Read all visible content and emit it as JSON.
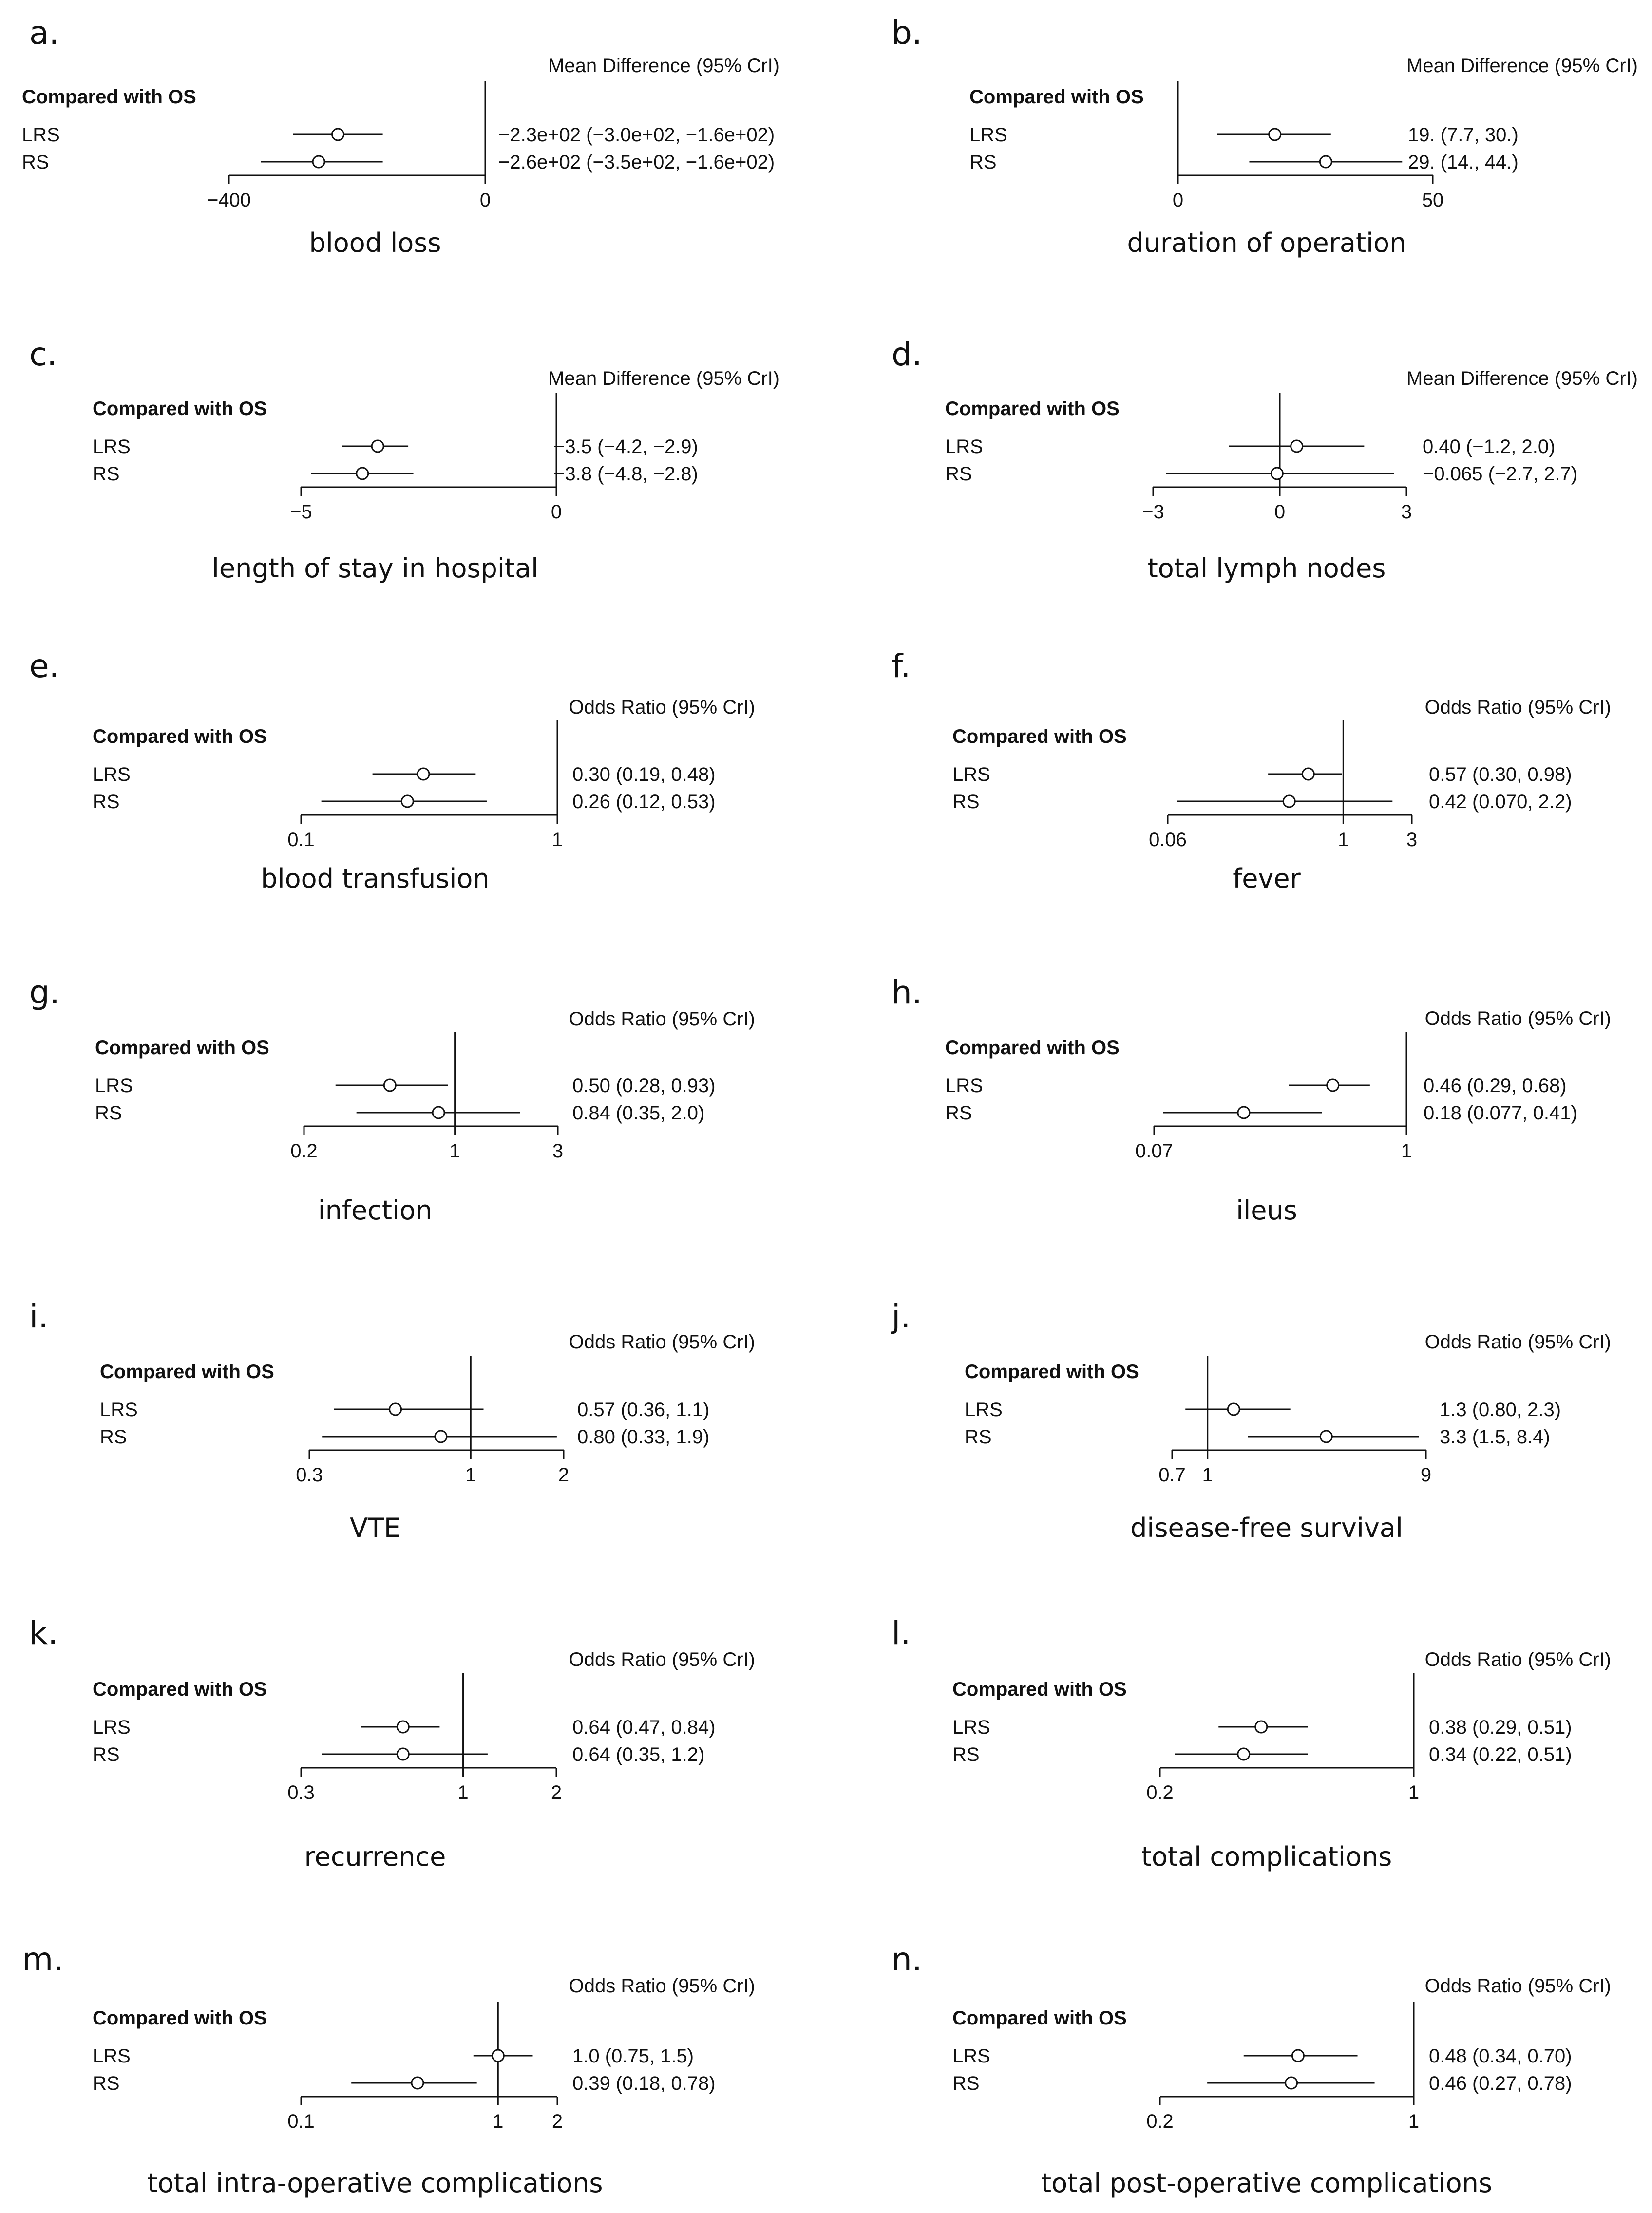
{
  "figure": {
    "compared_label": "Compared with OS",
    "series_labels": [
      "LRS",
      "RS"
    ]
  },
  "chart_data": [
    {
      "type": "forest",
      "panel": "a.",
      "title": "blood loss",
      "measure": "Mean Difference (95% CrI)",
      "scale": "linear",
      "xlim": [
        -400,
        0
      ],
      "ticks": [
        {
          "v": -400,
          "label": "−400"
        },
        {
          "v": 0,
          "label": "0"
        }
      ],
      "ref": 0,
      "series": [
        {
          "name": "LRS",
          "est": -230,
          "lo": -300,
          "hi": -160,
          "label": "−2.3e+02 (−3.0e+02, −1.6e+02)"
        },
        {
          "name": "RS",
          "est": -260,
          "lo": -350,
          "hi": -160,
          "label": "−2.6e+02 (−3.5e+02, −1.6e+02)"
        }
      ]
    },
    {
      "type": "forest",
      "panel": "b.",
      "title": "duration of operation",
      "measure": "Mean Difference (95% CrI)",
      "scale": "linear",
      "xlim": [
        0,
        50
      ],
      "ticks": [
        {
          "v": 0,
          "label": "0"
        },
        {
          "v": 50,
          "label": "50"
        }
      ],
      "ref": 0,
      "series": [
        {
          "name": "LRS",
          "est": 19,
          "lo": 7.7,
          "hi": 30,
          "label": "19. (7.7, 30.)"
        },
        {
          "name": "RS",
          "est": 29,
          "lo": 14,
          "hi": 44,
          "label": "29. (14., 44.)"
        }
      ]
    },
    {
      "type": "forest",
      "panel": "c.",
      "title": "length of stay in hospital",
      "measure": "Mean Difference (95% CrI)",
      "scale": "linear",
      "xlim": [
        -5,
        0
      ],
      "ticks": [
        {
          "v": -5,
          "label": "−5"
        },
        {
          "v": 0,
          "label": "0"
        }
      ],
      "ref": 0,
      "series": [
        {
          "name": "LRS",
          "est": -3.5,
          "lo": -4.2,
          "hi": -2.9,
          "label": "−3.5 (−4.2, −2.9)"
        },
        {
          "name": "RS",
          "est": -3.8,
          "lo": -4.8,
          "hi": -2.8,
          "label": "−3.8 (−4.8, −2.8)"
        }
      ]
    },
    {
      "type": "forest",
      "panel": "d.",
      "title": "total lymph nodes",
      "measure": "Mean Difference (95% CrI)",
      "scale": "linear",
      "xlim": [
        -3,
        3
      ],
      "ticks": [
        {
          "v": -3,
          "label": "−3"
        },
        {
          "v": 0,
          "label": "0"
        },
        {
          "v": 3,
          "label": "3"
        }
      ],
      "ref": 0,
      "series": [
        {
          "name": "LRS",
          "est": 0.4,
          "lo": -1.2,
          "hi": 2.0,
          "label": "0.40 (−1.2, 2.0)"
        },
        {
          "name": "RS",
          "est": -0.065,
          "lo": -2.7,
          "hi": 2.7,
          "label": "−0.065 (−2.7, 2.7)"
        }
      ]
    },
    {
      "type": "forest",
      "panel": "e.",
      "title": "blood transfusion",
      "measure": "Odds Ratio (95% CrI)",
      "scale": "log",
      "xlim": [
        0.1,
        1
      ],
      "ticks": [
        {
          "v": 0.1,
          "label": "0.1"
        },
        {
          "v": 1,
          "label": "1"
        }
      ],
      "ref": 1,
      "series": [
        {
          "name": "LRS",
          "est": 0.3,
          "lo": 0.19,
          "hi": 0.48,
          "label": "0.30 (0.19, 0.48)"
        },
        {
          "name": "RS",
          "est": 0.26,
          "lo": 0.12,
          "hi": 0.53,
          "label": "0.26 (0.12, 0.53)"
        }
      ]
    },
    {
      "type": "forest",
      "panel": "f.",
      "title": "fever",
      "measure": "Odds Ratio (95% CrI)",
      "scale": "log",
      "xlim": [
        0.06,
        3
      ],
      "ticks": [
        {
          "v": 0.06,
          "label": "0.06"
        },
        {
          "v": 1,
          "label": "1"
        },
        {
          "v": 3,
          "label": "3"
        }
      ],
      "ref": 1,
      "series": [
        {
          "name": "LRS",
          "est": 0.57,
          "lo": 0.3,
          "hi": 0.98,
          "label": "0.57 (0.30, 0.98)"
        },
        {
          "name": "RS",
          "est": 0.42,
          "lo": 0.07,
          "hi": 2.2,
          "label": "0.42 (0.070, 2.2)"
        }
      ]
    },
    {
      "type": "forest",
      "panel": "g.",
      "title": "infection",
      "measure": "Odds Ratio (95% CrI)",
      "scale": "log",
      "xlim": [
        0.2,
        3
      ],
      "ticks": [
        {
          "v": 0.2,
          "label": "0.2"
        },
        {
          "v": 1,
          "label": "1"
        },
        {
          "v": 3,
          "label": "3"
        }
      ],
      "ref": 1,
      "series": [
        {
          "name": "LRS",
          "est": 0.5,
          "lo": 0.28,
          "hi": 0.93,
          "label": "0.50 (0.28, 0.93)"
        },
        {
          "name": "RS",
          "est": 0.84,
          "lo": 0.35,
          "hi": 2.0,
          "label": "0.84 (0.35, 2.0)"
        }
      ]
    },
    {
      "type": "forest",
      "panel": "h.",
      "title": "ileus",
      "measure": "Odds Ratio (95% CrI)",
      "scale": "log",
      "xlim": [
        0.07,
        1
      ],
      "ticks": [
        {
          "v": 0.07,
          "label": "0.07"
        },
        {
          "v": 1,
          "label": "1"
        }
      ],
      "ref": 1,
      "series": [
        {
          "name": "LRS",
          "est": 0.46,
          "lo": 0.29,
          "hi": 0.68,
          "label": "0.46 (0.29, 0.68)"
        },
        {
          "name": "RS",
          "est": 0.18,
          "lo": 0.077,
          "hi": 0.41,
          "label": "0.18 (0.077, 0.41)"
        }
      ]
    },
    {
      "type": "forest",
      "panel": "i.",
      "title": "VTE",
      "measure": "Odds Ratio (95% CrI)",
      "scale": "log",
      "xlim": [
        0.3,
        2
      ],
      "ticks": [
        {
          "v": 0.3,
          "label": "0.3"
        },
        {
          "v": 1,
          "label": "1"
        },
        {
          "v": 2,
          "label": "2"
        }
      ],
      "ref": 1,
      "series": [
        {
          "name": "LRS",
          "est": 0.57,
          "lo": 0.36,
          "hi": 1.1,
          "label": "0.57 (0.36, 1.1)"
        },
        {
          "name": "RS",
          "est": 0.8,
          "lo": 0.33,
          "hi": 1.9,
          "label": "0.80 (0.33, 1.9)"
        }
      ]
    },
    {
      "type": "forest",
      "panel": "j.",
      "title": "disease-free survival",
      "measure": "Odds Ratio (95% CrI)",
      "scale": "log",
      "xlim": [
        0.7,
        9
      ],
      "ticks": [
        {
          "v": 0.7,
          "label": "0.7"
        },
        {
          "v": 1,
          "label": "1"
        },
        {
          "v": 9,
          "label": "9"
        }
      ],
      "ref": 1,
      "series": [
        {
          "name": "LRS",
          "est": 1.3,
          "lo": 0.8,
          "hi": 2.3,
          "label": "1.3 (0.80, 2.3)"
        },
        {
          "name": "RS",
          "est": 3.3,
          "lo": 1.5,
          "hi": 8.4,
          "label": "3.3 (1.5, 8.4)"
        }
      ]
    },
    {
      "type": "forest",
      "panel": "k.",
      "title": "recurrence",
      "measure": "Odds Ratio (95% CrI)",
      "scale": "log",
      "xlim": [
        0.3,
        2
      ],
      "ticks": [
        {
          "v": 0.3,
          "label": "0.3"
        },
        {
          "v": 1,
          "label": "1"
        },
        {
          "v": 2,
          "label": "2"
        }
      ],
      "ref": 1,
      "series": [
        {
          "name": "LRS",
          "est": 0.64,
          "lo": 0.47,
          "hi": 0.84,
          "label": "0.64 (0.47, 0.84)"
        },
        {
          "name": "RS",
          "est": 0.64,
          "lo": 0.35,
          "hi": 1.2,
          "label": "0.64 (0.35, 1.2)"
        }
      ]
    },
    {
      "type": "forest",
      "panel": "l.",
      "title": "total complications",
      "measure": "Odds Ratio (95% CrI)",
      "scale": "log",
      "xlim": [
        0.2,
        1
      ],
      "ticks": [
        {
          "v": 0.2,
          "label": "0.2"
        },
        {
          "v": 1,
          "label": "1"
        }
      ],
      "ref": 1,
      "series": [
        {
          "name": "LRS",
          "est": 0.38,
          "lo": 0.29,
          "hi": 0.51,
          "label": "0.38 (0.29, 0.51)"
        },
        {
          "name": "RS",
          "est": 0.34,
          "lo": 0.22,
          "hi": 0.51,
          "label": "0.34 (0.22, 0.51)"
        }
      ]
    },
    {
      "type": "forest",
      "panel": "m.",
      "title": "total intra-operative complications",
      "measure": "Odds Ratio (95% CrI)",
      "scale": "log",
      "xlim": [
        0.1,
        2
      ],
      "ticks": [
        {
          "v": 0.1,
          "label": "0.1"
        },
        {
          "v": 1,
          "label": "1"
        },
        {
          "v": 2,
          "label": "2"
        }
      ],
      "ref": 1,
      "series": [
        {
          "name": "LRS",
          "est": 1.0,
          "lo": 0.75,
          "hi": 1.5,
          "label": "1.0 (0.75, 1.5)"
        },
        {
          "name": "RS",
          "est": 0.39,
          "lo": 0.18,
          "hi": 0.78,
          "label": "0.39 (0.18, 0.78)"
        }
      ]
    },
    {
      "type": "forest",
      "panel": "n.",
      "title": "total post-operative complications",
      "measure": "Odds Ratio (95% CrI)",
      "scale": "log",
      "xlim": [
        0.2,
        1
      ],
      "ticks": [
        {
          "v": 0.2,
          "label": "0.2"
        },
        {
          "v": 1,
          "label": "1"
        }
      ],
      "ref": 1,
      "series": [
        {
          "name": "LRS",
          "est": 0.48,
          "lo": 0.34,
          "hi": 0.7,
          "label": "0.48 (0.34, 0.70)"
        },
        {
          "name": "RS",
          "est": 0.46,
          "lo": 0.27,
          "hi": 0.78,
          "label": "0.46 (0.27, 0.78)"
        }
      ]
    }
  ]
}
